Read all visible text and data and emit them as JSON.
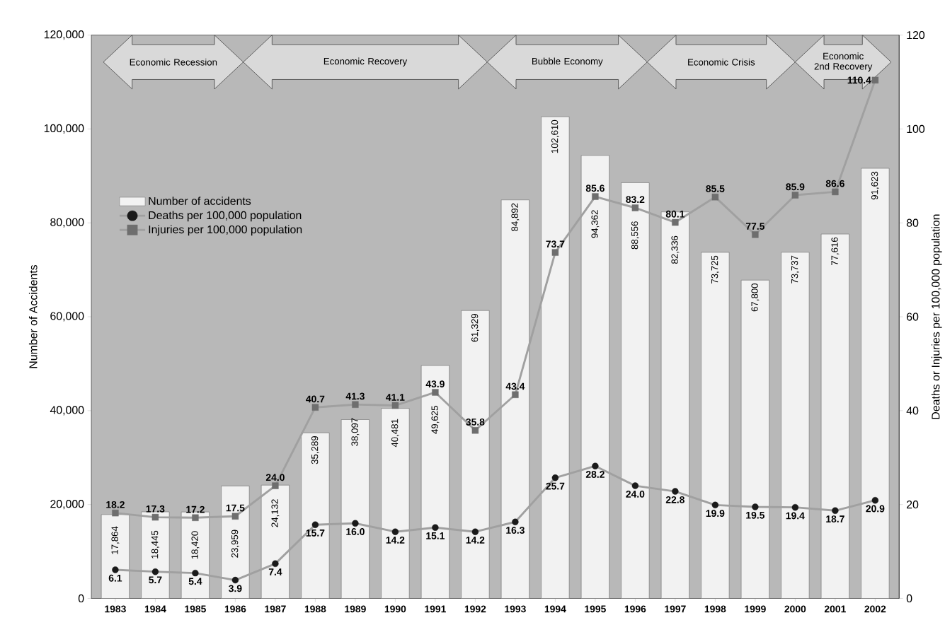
{
  "chart_data": {
    "type": "bar",
    "ylabel": "Number of Accidents",
    "y2label": "Deaths or Injuries per 100,000 population",
    "x": [
      1983,
      1984,
      1985,
      1986,
      1987,
      1988,
      1989,
      1990,
      1991,
      1992,
      1993,
      1994,
      1995,
      1996,
      1997,
      1998,
      1999,
      2000,
      2001,
      2002
    ],
    "xlim": [
      1982.4,
      2002.6
    ],
    "xticks": [
      1983,
      1984,
      1985,
      1986,
      1987,
      1988,
      1989,
      1990,
      1991,
      1992,
      1993,
      1994,
      1995,
      1996,
      1997,
      1998,
      1999,
      2000,
      2001,
      2002
    ],
    "ylim": [
      0,
      120000
    ],
    "yticks": [
      0,
      {
        "value": 20000,
        "label": "20,000"
      },
      {
        "value": 40000,
        "label": "40,000"
      },
      {
        "value": 60000,
        "label": "60,000"
      },
      {
        "value": 80000,
        "label": "80,000"
      },
      {
        "value": 100000,
        "label": "100,000"
      },
      {
        "value": 120000,
        "label": "120,000"
      }
    ],
    "y2lim": [
      0,
      120
    ],
    "y2ticks": [
      0,
      20,
      40,
      60,
      80,
      100,
      120
    ],
    "legend": "left",
    "grid": false,
    "series": [
      {
        "name": "Number of accidents",
        "color": "#f2f2f2",
        "values": [
          17864,
          18445,
          18420,
          23959,
          24132,
          35289,
          38097,
          40481,
          49625,
          61329,
          84892,
          102610,
          94362,
          88556,
          82336,
          73725,
          67800,
          73737,
          77616,
          91623
        ],
        "value_labels": [
          "17,864",
          "18,445",
          "18,420",
          "23,959",
          "24,132",
          "35,289",
          "38,097",
          "40,481",
          "49,625",
          "61,329",
          "84,892",
          "102,610",
          "94,362",
          "88,556",
          "82,336",
          "73,725",
          "67,800",
          "73,737",
          "77,616",
          "91,623"
        ]
      },
      {
        "name": "Deaths per 100,000 population",
        "type": "line",
        "axis": "y2",
        "marker": "circle",
        "color": "#1a1a1a",
        "values": [
          6.1,
          5.7,
          5.4,
          3.9,
          7.4,
          15.7,
          16.0,
          14.2,
          15.1,
          14.2,
          16.3,
          25.7,
          28.2,
          24.0,
          22.8,
          19.9,
          19.5,
          19.4,
          18.7,
          20.9
        ],
        "value_labels": [
          "6.1",
          "5.7",
          "5.4",
          "3.9",
          "7.4",
          "15.7",
          "16.0",
          "14.2",
          "15.1",
          "14.2",
          "16.3",
          "25.7",
          "28.2",
          "24.0",
          "22.8",
          "19.9",
          "19.5",
          "19.4",
          "18.7",
          "20.9"
        ]
      },
      {
        "name": "Injuries per 100,000 population",
        "type": "line",
        "axis": "y2",
        "marker": "square",
        "color": "#6e6e6e",
        "values": [
          18.2,
          17.3,
          17.2,
          17.5,
          24.0,
          40.7,
          41.3,
          41.1,
          43.9,
          35.8,
          43.4,
          73.7,
          85.6,
          83.2,
          80.1,
          85.5,
          77.5,
          85.9,
          86.6,
          110.4
        ],
        "value_labels": [
          "18.2",
          "17.3",
          "17.2",
          "17.5",
          "24.0",
          "40.7",
          "41.3",
          "41.1",
          "43.9",
          "35.8",
          "43.4",
          "73.7",
          "85.6",
          "83.2",
          "80.1",
          "85.5",
          "77.5",
          "85.9",
          "86.6",
          "110.4"
        ]
      }
    ],
    "annotations": [
      "Economic Recession",
      "Economic Recovery",
      "Bubble Economy",
      "Economic Crisis",
      "Economic 2nd Recovery"
    ]
  }
}
